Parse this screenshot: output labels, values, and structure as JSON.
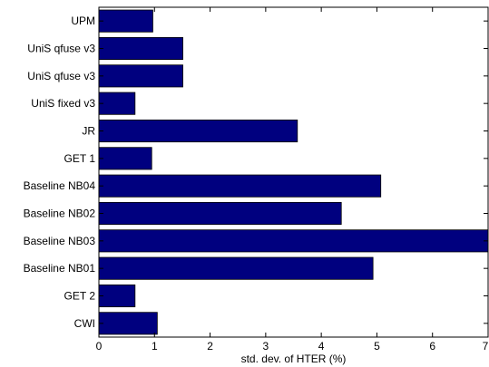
{
  "chart_data": {
    "type": "bar",
    "orientation": "horizontal",
    "categories": [
      "UPM",
      "UniS qfuse v3",
      "UniS qfuse v3",
      "UniS fixed v3",
      "JR",
      "GET 1",
      "Baseline NB04",
      "Baseline NB02",
      "Baseline NB03",
      "Baseline NB01",
      "GET 2",
      "CWI"
    ],
    "values": [
      0.97,
      1.51,
      1.51,
      0.65,
      3.57,
      0.95,
      5.07,
      4.36,
      7.0,
      4.93,
      0.65,
      1.05
    ],
    "title": "",
    "xlabel": "std. dev. of HTER (%)",
    "ylabel": "",
    "xlim": [
      0,
      7
    ],
    "xticks": [
      "0",
      "1",
      "2",
      "3",
      "4",
      "5",
      "6",
      "7"
    ],
    "grid": false,
    "bar_color": "#00007f",
    "edge_color": "#000000"
  }
}
